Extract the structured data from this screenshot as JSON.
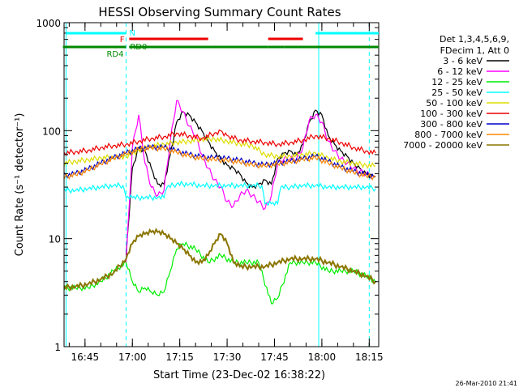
{
  "chart_data": {
    "type": "line",
    "title": "HESSI Observing Summary Count Rates",
    "xlabel": "Start Time (23-Dec-02 16:38:22)",
    "ylabel": "Count Rate (s⁻¹ detector⁻¹)",
    "yscale": "log",
    "ylim": [
      1,
      1000
    ],
    "xlim": [
      "16:38:22",
      "18:18:00"
    ],
    "x_ticks": [
      "16:45",
      "17:00",
      "17:15",
      "17:30",
      "17:45",
      "18:00",
      "18:15"
    ],
    "y_ticks": [
      "1",
      "10",
      "100",
      "1000"
    ],
    "grid": false,
    "legend_placement": "right",
    "legend_header": [
      "Det 1,3,4,5,6,9,",
      "FDecim 1, Att 0"
    ],
    "footer": "26-Mar-2010 21:41",
    "series": [
      {
        "name": "3 - 6 keV",
        "color": "#000000",
        "x": [
          "16:58",
          "17:00",
          "17:02",
          "17:04",
          "17:06",
          "17:08",
          "17:10",
          "17:12",
          "17:14",
          "17:16",
          "17:18",
          "17:20",
          "17:22",
          "17:24",
          "17:26",
          "17:28",
          "17:30",
          "17:32",
          "17:34",
          "17:36",
          "17:38",
          "17:40",
          "17:42",
          "17:44",
          "17:46",
          "17:48",
          "17:50",
          "17:52",
          "17:54",
          "17:56",
          "17:58",
          "18:00",
          "18:02",
          "18:04",
          "18:06",
          "18:08",
          "18:10",
          "18:12",
          "18:14",
          "18:16"
        ],
        "y": [
          7,
          45,
          70,
          65,
          45,
          32,
          32,
          60,
          120,
          150,
          140,
          120,
          100,
          80,
          65,
          55,
          48,
          45,
          40,
          33,
          30,
          32,
          35,
          32,
          55,
          62,
          65,
          60,
          75,
          120,
          155,
          140,
          90,
          75,
          65,
          58,
          50,
          45,
          40,
          38
        ]
      },
      {
        "name": "6 - 12 keV",
        "color": "#ff00ff",
        "x": [
          "16:58",
          "17:00",
          "17:02",
          "17:04",
          "17:06",
          "17:08",
          "17:10",
          "17:12",
          "17:14",
          "17:16",
          "17:18",
          "17:20",
          "17:22",
          "17:24",
          "17:26",
          "17:28",
          "17:30",
          "17:32",
          "17:34",
          "17:36",
          "17:38",
          "17:40",
          "17:42",
          "17:44",
          "17:46",
          "17:48",
          "17:50",
          "17:52",
          "17:54",
          "17:56",
          "17:58",
          "18:00",
          "18:02",
          "18:04",
          "18:06",
          "18:08",
          "18:10",
          "18:12",
          "18:14",
          "18:16"
        ],
        "y": [
          6,
          70,
          140,
          50,
          30,
          25,
          28,
          80,
          190,
          150,
          110,
          90,
          60,
          45,
          35,
          30,
          22,
          20,
          25,
          28,
          25,
          22,
          19,
          25,
          50,
          55,
          55,
          55,
          70,
          125,
          140,
          120,
          80,
          65,
          55,
          50,
          45,
          42,
          40,
          38
        ]
      },
      {
        "name": "12 - 25 keV",
        "color": "#00ee00",
        "x": [
          "16:38",
          "16:42",
          "16:46",
          "16:50",
          "16:54",
          "16:58",
          "17:00",
          "17:02",
          "17:04",
          "17:06",
          "17:08",
          "17:10",
          "17:12",
          "17:14",
          "17:16",
          "17:20",
          "17:24",
          "17:28",
          "17:32",
          "17:36",
          "17:40",
          "17:44",
          "17:46",
          "17:50",
          "17:54",
          "17:58",
          "18:02",
          "18:06",
          "18:10",
          "18:14",
          "18:17"
        ],
        "y": [
          3.5,
          3.5,
          3.5,
          4,
          5,
          6,
          4,
          3.2,
          3.5,
          3.2,
          3,
          3.2,
          5,
          8,
          9,
          8,
          6,
          7,
          6,
          6,
          6,
          2.5,
          2.8,
          6,
          6,
          6,
          5,
          5,
          5,
          4.5,
          4
        ]
      },
      {
        "name": "25 - 50 keV",
        "color": "#00ffff",
        "x": [
          "16:38",
          "16:42",
          "16:46",
          "16:50",
          "16:54",
          "16:57",
          "16:58",
          "17:00",
          "17:04",
          "17:08",
          "17:10",
          "17:11",
          "17:14",
          "17:18",
          "17:22",
          "17:26",
          "17:30",
          "17:34",
          "17:38",
          "17:41",
          "17:42",
          "17:44",
          "17:46",
          "17:47",
          "17:50",
          "17:54",
          "17:58",
          "18:02",
          "18:06",
          "18:10",
          "18:14",
          "18:17"
        ],
        "y": [
          28,
          28,
          29,
          30,
          31,
          31,
          24,
          24,
          24,
          24,
          24,
          30,
          32,
          32,
          31,
          31,
          31,
          31,
          31,
          31,
          21,
          21,
          21,
          30,
          30,
          31,
          31,
          30,
          30,
          30,
          30,
          29
        ]
      },
      {
        "name": "50 - 100 keV",
        "color": "#dddd00",
        "x": [
          "16:38",
          "16:42",
          "16:46",
          "16:50",
          "16:54",
          "16:58",
          "17:02",
          "17:06",
          "17:10",
          "17:14",
          "17:18",
          "17:22",
          "17:26",
          "17:30",
          "17:34",
          "17:38",
          "17:42",
          "17:46",
          "17:50",
          "17:54",
          "17:58",
          "18:02",
          "18:06",
          "18:10",
          "18:14",
          "18:17"
        ],
        "y": [
          50,
          52,
          54,
          56,
          57,
          58,
          66,
          72,
          75,
          78,
          80,
          84,
          84,
          80,
          76,
          73,
          60,
          58,
          58,
          60,
          62,
          56,
          52,
          50,
          48,
          47
        ]
      },
      {
        "name": "100 - 300 keV",
        "color": "#ee0000",
        "x": [
          "16:38",
          "16:42",
          "16:46",
          "16:50",
          "16:54",
          "16:58",
          "17:02",
          "17:06",
          "17:10",
          "17:14",
          "17:18",
          "17:22",
          "17:26",
          "17:28",
          "17:30",
          "17:34",
          "17:38",
          "17:42",
          "17:46",
          "17:50",
          "17:54",
          "17:58",
          "18:02",
          "18:06",
          "18:10",
          "18:14",
          "18:17"
        ],
        "y": [
          62,
          64,
          66,
          70,
          73,
          75,
          80,
          85,
          88,
          95,
          90,
          85,
          95,
          100,
          90,
          82,
          80,
          78,
          75,
          78,
          82,
          90,
          85,
          78,
          70,
          65,
          62
        ]
      },
      {
        "name": "300 - 800 keV",
        "color": "#0000cc",
        "x": [
          "16:38",
          "16:42",
          "16:46",
          "16:50",
          "16:54",
          "16:58",
          "17:02",
          "17:06",
          "17:10",
          "17:14",
          "17:18",
          "17:22",
          "17:26",
          "17:30",
          "17:34",
          "17:38",
          "17:42",
          "17:46",
          "17:50",
          "17:54",
          "17:58",
          "18:02",
          "18:06",
          "18:10",
          "18:14",
          "18:17"
        ],
        "y": [
          38,
          40,
          44,
          50,
          56,
          62,
          68,
          70,
          70,
          65,
          60,
          57,
          56,
          55,
          53,
          50,
          48,
          50,
          52,
          55,
          58,
          52,
          46,
          42,
          39,
          38
        ]
      },
      {
        "name": "800 - 7000 keV",
        "color": "#ff8800",
        "x": [
          "16:38",
          "16:42",
          "16:46",
          "16:50",
          "16:54",
          "16:58",
          "17:02",
          "17:06",
          "17:10",
          "17:14",
          "17:18",
          "17:22",
          "17:26",
          "17:30",
          "17:34",
          "17:38",
          "17:42",
          "17:46",
          "17:50",
          "17:54",
          "17:58",
          "18:02",
          "18:06",
          "18:10",
          "18:14",
          "18:17"
        ],
        "y": [
          37,
          39,
          43,
          49,
          55,
          61,
          67,
          69,
          68,
          63,
          58,
          55,
          54,
          53,
          51,
          48,
          47,
          49,
          51,
          54,
          56,
          50,
          45,
          41,
          38,
          37
        ]
      },
      {
        "name": "7000 - 20000 keV",
        "color": "#8b7500",
        "x": [
          "16:38",
          "16:42",
          "16:46",
          "16:50",
          "16:54",
          "16:58",
          "17:00",
          "17:02",
          "17:04",
          "17:06",
          "17:08",
          "17:10",
          "17:12",
          "17:14",
          "17:16",
          "17:18",
          "17:20",
          "17:22",
          "17:24",
          "17:26",
          "17:28",
          "17:30",
          "17:32",
          "17:34",
          "17:38",
          "17:42",
          "17:46",
          "17:50",
          "17:54",
          "17:58",
          "18:02",
          "18:06",
          "18:10",
          "18:14",
          "18:17"
        ],
        "y": [
          3.5,
          3.6,
          3.8,
          4.2,
          4.8,
          6.5,
          9,
          10.5,
          11,
          11.5,
          11.5,
          11,
          10,
          9,
          8,
          7,
          6,
          6,
          7,
          9,
          11,
          9,
          6,
          5.5,
          5.5,
          5.5,
          6,
          6.5,
          6.5,
          6.5,
          6,
          5.5,
          5,
          4.5,
          4
        ]
      }
    ],
    "markers": [
      {
        "label": "N",
        "color": "#00ffff",
        "segments": [
          [
            "16:39",
            "16:58"
          ],
          [
            "17:58",
            "18:18"
          ]
        ]
      },
      {
        "label": "F",
        "color": "#ee0000",
        "segments": [
          [
            "16:59",
            "17:24"
          ],
          [
            "17:43",
            "17:54"
          ]
        ]
      },
      {
        "label": "RD0",
        "color": "#008800",
        "segments": [
          [
            "16:59",
            "17:06"
          ],
          [
            "17:06",
            "17:43"
          ],
          [
            "17:48",
            "18:18"
          ]
        ]
      },
      {
        "label": "RD4",
        "color": "#008800",
        "segments": [
          [
            "16:38",
            "16:58"
          ],
          [
            "16:59",
            "17:10"
          ],
          [
            "17:43",
            "17:48"
          ]
        ]
      }
    ],
    "vertical_lines": [
      {
        "time": "16:39",
        "color": "#00ffff",
        "style": "solid"
      },
      {
        "time": "16:58",
        "color": "#00ffff",
        "style": "dashed"
      },
      {
        "time": "17:59",
        "color": "#00ffff",
        "style": "solid"
      },
      {
        "time": "18:15",
        "color": "#00ffff",
        "style": "dashed"
      }
    ]
  }
}
